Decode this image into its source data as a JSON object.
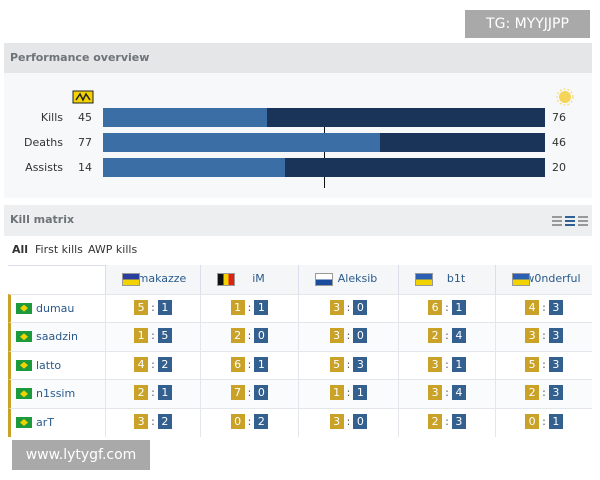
{
  "watermarks": [
    "TG: MYYJJPP",
    "www.lytygf.com"
  ],
  "performance": {
    "title": "Performance overview",
    "rows": [
      {
        "label": "Kills",
        "left": 45,
        "right": 76
      },
      {
        "label": "Deaths",
        "left": 77,
        "right": 46
      },
      {
        "label": "Assists",
        "left": 14,
        "right": 20
      }
    ]
  },
  "kill_matrix": {
    "title": "Kill matrix",
    "tabs": [
      "All",
      "First kills",
      "AWP kills"
    ],
    "separator": ":",
    "columns": [
      "makazze",
      "iM",
      "Aleksib",
      "b1t",
      "w0nderful"
    ],
    "rows": [
      {
        "player": "dumau",
        "cells": [
          [
            5,
            1
          ],
          [
            1,
            1
          ],
          [
            3,
            0
          ],
          [
            6,
            1
          ],
          [
            4,
            3
          ]
        ]
      },
      {
        "player": "saadzin",
        "cells": [
          [
            1,
            5
          ],
          [
            2,
            0
          ],
          [
            3,
            0
          ],
          [
            2,
            4
          ],
          [
            3,
            3
          ]
        ]
      },
      {
        "player": "latto",
        "cells": [
          [
            4,
            2
          ],
          [
            6,
            1
          ],
          [
            5,
            3
          ],
          [
            3,
            1
          ],
          [
            5,
            3
          ]
        ]
      },
      {
        "player": "n1ssim",
        "cells": [
          [
            2,
            1
          ],
          [
            7,
            0
          ],
          [
            1,
            1
          ],
          [
            3,
            4
          ],
          [
            2,
            3
          ]
        ]
      },
      {
        "player": "arT",
        "cells": [
          [
            3,
            2
          ],
          [
            0,
            2
          ],
          [
            3,
            0
          ],
          [
            2,
            3
          ],
          [
            0,
            1
          ]
        ]
      }
    ]
  }
}
